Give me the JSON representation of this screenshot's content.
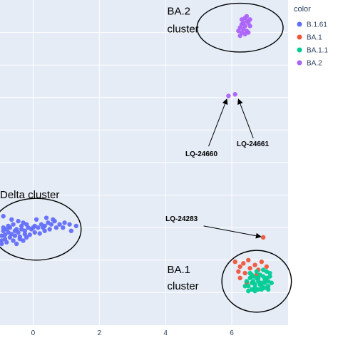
{
  "chart_data": {
    "type": "scatter",
    "xlim": [
      -1.0,
      7.7
    ],
    "ylim": [
      0.0,
      10.0
    ],
    "x_ticks": [
      0,
      2,
      4,
      6
    ],
    "grid": true,
    "legend": {
      "title": "color",
      "placement": "top-right",
      "entries": [
        {
          "label": "B.1.61",
          "color": "#636efa"
        },
        {
          "label": "BA.1",
          "color": "#ef553b"
        },
        {
          "label": "BA.1.1",
          "color": "#00cc96"
        },
        {
          "label": "BA.2",
          "color": "#ab63fa"
        }
      ]
    },
    "series": [
      {
        "name": "B.1.61",
        "color": "#636efa",
        "points": [
          [
            -0.95,
            2.75
          ],
          [
            -0.85,
            2.78
          ],
          [
            -0.75,
            2.85
          ],
          [
            -0.65,
            2.8
          ],
          [
            -0.55,
            2.9
          ],
          [
            -0.45,
            2.85
          ],
          [
            -0.35,
            2.95
          ],
          [
            -0.25,
            2.9
          ],
          [
            -0.15,
            3.0
          ],
          [
            -0.05,
            2.95
          ],
          [
            0.05,
            3.05
          ],
          [
            0.15,
            3.0
          ],
          [
            0.25,
            3.1
          ],
          [
            0.35,
            3.05
          ],
          [
            0.45,
            3.15
          ],
          [
            0.55,
            3.1
          ],
          [
            0.65,
            3.2
          ],
          [
            0.8,
            3.1
          ],
          [
            0.95,
            3.15
          ],
          [
            1.1,
            3.1
          ],
          [
            -0.95,
            2.6
          ],
          [
            -0.85,
            2.65
          ],
          [
            -0.7,
            2.7
          ],
          [
            -0.55,
            2.75
          ],
          [
            -0.4,
            2.72
          ],
          [
            -0.25,
            2.8
          ],
          [
            -0.1,
            2.78
          ],
          [
            0.05,
            2.85
          ],
          [
            0.2,
            2.82
          ],
          [
            0.35,
            2.9
          ],
          [
            -0.9,
            3.0
          ],
          [
            -0.75,
            3.05
          ],
          [
            -0.6,
            3.1
          ],
          [
            -0.45,
            3.2
          ],
          [
            -0.3,
            3.15
          ],
          [
            -0.9,
            2.9
          ],
          [
            -0.8,
            2.95
          ],
          [
            -0.7,
            3.0
          ],
          [
            -0.5,
            2.95
          ],
          [
            -0.35,
            3.05
          ],
          [
            -0.2,
            3.1
          ],
          [
            0.0,
            3.0
          ],
          [
            0.3,
            3.0
          ],
          [
            0.5,
            2.95
          ],
          [
            0.7,
            3.0
          ],
          [
            -0.95,
            2.5
          ],
          [
            -0.8,
            2.55
          ],
          [
            -0.6,
            2.6
          ],
          [
            -0.4,
            2.65
          ],
          [
            -0.2,
            2.7
          ],
          [
            0.1,
            3.25
          ],
          [
            0.4,
            3.3
          ],
          [
            0.6,
            3.25
          ],
          [
            0.9,
            3.0
          ],
          [
            1.15,
            2.9
          ],
          [
            1.3,
            3.05
          ],
          [
            -0.65,
            3.25
          ],
          [
            -0.9,
            3.35
          ],
          [
            -0.5,
            2.5
          ],
          [
            -0.3,
            2.6
          ]
        ]
      },
      {
        "name": "BA.1",
        "color": "#ef553b",
        "points": [
          [
            6.95,
            2.7
          ],
          [
            6.1,
            1.95
          ],
          [
            6.25,
            1.8
          ],
          [
            6.4,
            1.6
          ],
          [
            6.55,
            1.75
          ],
          [
            6.7,
            1.85
          ],
          [
            6.8,
            1.7
          ],
          [
            6.35,
            1.9
          ],
          [
            6.5,
            2.0
          ],
          [
            6.9,
            1.95
          ],
          [
            7.05,
            1.8
          ],
          [
            6.25,
            1.45
          ],
          [
            6.6,
            1.5
          ],
          [
            6.45,
            1.3
          ],
          [
            6.2,
            1.65
          ],
          [
            6.75,
            1.55
          ]
        ]
      },
      {
        "name": "BA.1.1",
        "color": "#00cc96",
        "points": [
          [
            6.5,
            1.2
          ],
          [
            6.6,
            1.3
          ],
          [
            6.7,
            1.25
          ],
          [
            6.8,
            1.35
          ],
          [
            6.9,
            1.3
          ],
          [
            7.0,
            1.4
          ],
          [
            7.1,
            1.35
          ],
          [
            7.2,
            1.3
          ],
          [
            6.55,
            1.45
          ],
          [
            6.65,
            1.5
          ],
          [
            6.75,
            1.45
          ],
          [
            6.85,
            1.55
          ],
          [
            6.95,
            1.5
          ],
          [
            7.05,
            1.45
          ],
          [
            7.15,
            1.5
          ],
          [
            6.6,
            1.1
          ],
          [
            6.7,
            1.15
          ],
          [
            6.8,
            1.1
          ],
          [
            6.9,
            1.2
          ],
          [
            7.0,
            1.15
          ],
          [
            7.1,
            1.2
          ],
          [
            6.45,
            1.35
          ],
          [
            6.55,
            1.6
          ],
          [
            6.75,
            1.65
          ],
          [
            6.95,
            1.7
          ],
          [
            7.05,
            1.65
          ],
          [
            6.85,
            1.25
          ],
          [
            6.65,
            1.35
          ],
          [
            7.0,
            1.3
          ],
          [
            6.8,
            1.45
          ],
          [
            6.6,
            1.55
          ],
          [
            7.15,
            1.6
          ],
          [
            6.7,
            1.05
          ],
          [
            6.4,
            1.2
          ],
          [
            6.5,
            1.05
          ],
          [
            6.9,
            1.1
          ],
          [
            7.1,
            1.1
          ]
        ]
      },
      {
        "name": "BA.2",
        "color": "#ab63fa",
        "points": [
          [
            5.9,
            7.05
          ],
          [
            6.1,
            7.1
          ],
          [
            6.25,
            9.15
          ],
          [
            6.3,
            9.25
          ],
          [
            6.35,
            9.3
          ],
          [
            6.4,
            9.2
          ],
          [
            6.45,
            9.35
          ],
          [
            6.3,
            9.4
          ],
          [
            6.4,
            9.45
          ],
          [
            6.5,
            9.3
          ],
          [
            6.55,
            9.2
          ],
          [
            6.35,
            9.1
          ],
          [
            6.45,
            9.05
          ],
          [
            6.3,
            9.0
          ],
          [
            6.4,
            8.95
          ],
          [
            6.5,
            9.0
          ],
          [
            6.2,
            9.05
          ],
          [
            6.55,
            9.4
          ],
          [
            6.25,
            8.9
          ],
          [
            6.45,
            9.5
          ]
        ]
      }
    ],
    "annotations": [
      {
        "text": "BA.2",
        "x": 4.05,
        "y": 9.55,
        "size": "big"
      },
      {
        "text": "cluster",
        "x": 4.05,
        "y": 9.0,
        "size": "big"
      },
      {
        "text": "LQ-24660",
        "x": 4.6,
        "y": 5.2,
        "size": "small"
      },
      {
        "text": "LQ-24661",
        "x": 6.15,
        "y": 5.5,
        "size": "small"
      },
      {
        "text": "Delta cluster",
        "x": -1.0,
        "y": 3.9,
        "size": "big"
      },
      {
        "text": "LQ-24283",
        "x": 4.0,
        "y": 3.2,
        "size": "small"
      },
      {
        "text": "BA.1",
        "x": 4.05,
        "y": 1.6,
        "size": "big"
      },
      {
        "text": "cluster",
        "x": 4.05,
        "y": 1.1,
        "size": "big"
      }
    ],
    "arrows": [
      {
        "from": [
          5.3,
          5.5
        ],
        "to": [
          5.85,
          6.95
        ]
      },
      {
        "from": [
          6.65,
          5.75
        ],
        "to": [
          6.2,
          6.95
        ]
      },
      {
        "from": [
          5.15,
          3.05
        ],
        "to": [
          6.88,
          2.72
        ]
      }
    ],
    "ellipses": [
      {
        "cx": 6.25,
        "cy": 9.15,
        "rx": 1.3,
        "ry": 0.75
      },
      {
        "cx": 0.1,
        "cy": 2.95,
        "rx": 1.35,
        "ry": 0.95
      },
      {
        "cx": 6.75,
        "cy": 1.35,
        "rx": 1.05,
        "ry": 0.95
      }
    ]
  }
}
